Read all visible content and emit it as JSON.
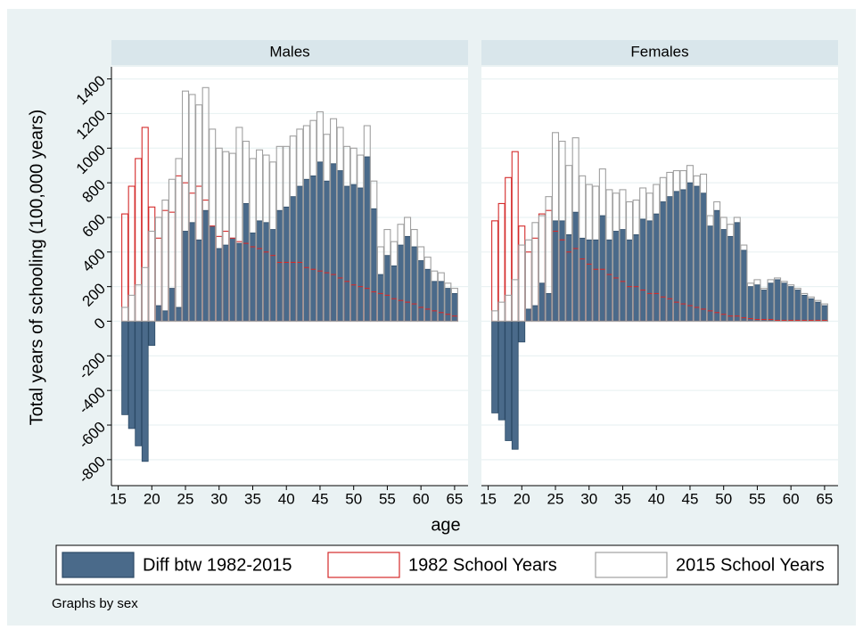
{
  "chart_data": {
    "type": "bar",
    "y_label": "Total years of schooling (100,000 years)",
    "x_label": "age",
    "note": "Graphs by sex",
    "x": [
      16,
      17,
      18,
      19,
      20,
      21,
      22,
      23,
      24,
      25,
      26,
      27,
      28,
      29,
      30,
      31,
      32,
      33,
      34,
      35,
      36,
      37,
      38,
      39,
      40,
      41,
      42,
      43,
      44,
      45,
      46,
      47,
      48,
      49,
      50,
      51,
      52,
      53,
      54,
      55,
      56,
      57,
      58,
      59,
      60,
      61,
      62,
      63,
      64,
      65
    ],
    "xlim": [
      14,
      67
    ],
    "xticks": [
      15,
      20,
      25,
      30,
      35,
      40,
      45,
      50,
      55,
      60,
      65
    ],
    "ylim": [
      -950,
      1470
    ],
    "yticks": [
      -800,
      -600,
      -400,
      -200,
      0,
      200,
      400,
      600,
      800,
      1000,
      1200,
      1400
    ],
    "grid": true,
    "series": [
      {
        "name": "Diff btw 1982-2015",
        "color": "#4a6a8a",
        "filled": true
      },
      {
        "name": "1982 School Years",
        "color": "#d42a2a",
        "filled": false
      },
      {
        "name": "2015 School Years",
        "color": "#a0a0a0",
        "filled": false
      }
    ],
    "panels": [
      {
        "title": "Males",
        "series": [
          {
            "values": [
              -540,
              -620,
              -720,
              -810,
              -140,
              90,
              60,
              190,
              80,
              520,
              570,
              470,
              640,
              550,
              420,
              440,
              480,
              450,
              680,
              510,
              580,
              570,
              530,
              640,
              660,
              720,
              780,
              820,
              840,
              920,
              810,
              910,
              870,
              780,
              790,
              770,
              950,
              650,
              270,
              380,
              320,
              440,
              490,
              430,
              350,
              300,
              230,
              230,
              190,
              160
            ]
          },
          {
            "values": [
              620,
              780,
              940,
              1120,
              660,
              480,
              640,
              630,
              840,
              800,
              740,
              780,
              700,
              550,
              490,
              520,
              480,
              460,
              450,
              430,
              420,
              400,
              380,
              340,
              340,
              340,
              340,
              310,
              300,
              290,
              280,
              270,
              250,
              230,
              210,
              200,
              190,
              170,
              160,
              150,
              130,
              120,
              110,
              100,
              80,
              70,
              60,
              50,
              40,
              30
            ]
          },
          {
            "values": [
              80,
              150,
              210,
              310,
              520,
              600,
              700,
              820,
              940,
              1330,
              1310,
              1250,
              1350,
              1110,
              1000,
              980,
              970,
              1120,
              1040,
              940,
              990,
              960,
              920,
              1010,
              1010,
              1070,
              1110,
              1130,
              1160,
              1210,
              1080,
              1170,
              1120,
              1010,
              1000,
              960,
              1130,
              810,
              430,
              530,
              460,
              560,
              600,
              530,
              430,
              370,
              290,
              280,
              220,
              190
            ]
          }
        ]
      },
      {
        "title": "Females",
        "series": [
          {
            "values": [
              -530,
              -570,
              -690,
              -740,
              -120,
              70,
              90,
              220,
              160,
              580,
              580,
              500,
              630,
              480,
              470,
              470,
              610,
              470,
              520,
              530,
              470,
              500,
              590,
              580,
              620,
              690,
              720,
              750,
              760,
              800,
              780,
              740,
              550,
              640,
              530,
              490,
              570,
              410,
              200,
              210,
              180,
              220,
              240,
              220,
              200,
              180,
              150,
              130,
              110,
              90
            ]
          },
          {
            "values": [
              580,
              680,
              830,
              980,
              550,
              400,
              480,
              620,
              640,
              520,
              470,
              400,
              420,
              360,
              330,
              300,
              300,
              270,
              250,
              230,
              200,
              200,
              180,
              160,
              160,
              140,
              130,
              110,
              100,
              90,
              80,
              70,
              60,
              50,
              40,
              30,
              30,
              20,
              15,
              10,
              10,
              10,
              5,
              5,
              5,
              5,
              5,
              5,
              5,
              5
            ]
          },
          {
            "values": [
              60,
              110,
              150,
              240,
              440,
              470,
              570,
              610,
              720,
              1090,
              1040,
              900,
              1060,
              840,
              790,
              780,
              880,
              760,
              740,
              760,
              690,
              700,
              770,
              740,
              790,
              830,
              860,
              870,
              870,
              900,
              840,
              850,
              610,
              690,
              600,
              560,
              600,
              440,
              220,
              240,
              190,
              240,
              250,
              230,
              210,
              190,
              160,
              140,
              120,
              100
            ]
          }
        ]
      }
    ]
  }
}
